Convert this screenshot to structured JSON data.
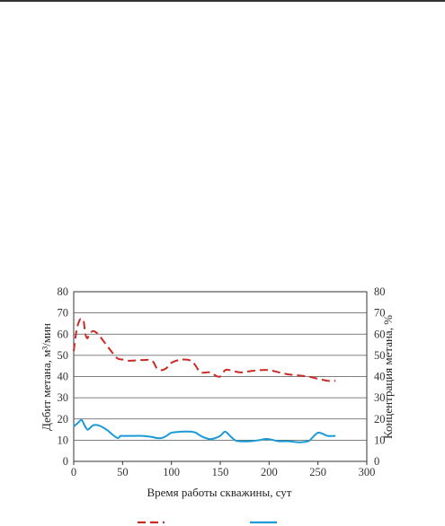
{
  "chart_data": {
    "type": "line",
    "xlabel": "Время работы скважины, сут",
    "ylabel_left": "Дебит метана, м³/мин",
    "ylabel_right": "Концентрация метана, %",
    "xlim": [
      0,
      300
    ],
    "ylim_left": [
      0,
      80
    ],
    "ylim_right": [
      0,
      80
    ],
    "xticks": [
      0,
      50,
      100,
      150,
      200,
      250,
      300
    ],
    "yticks_left": [
      0,
      10,
      20,
      30,
      40,
      50,
      60,
      70,
      80
    ],
    "yticks_right": [
      0,
      10,
      20,
      30,
      40,
      50,
      60,
      70,
      80
    ],
    "grid": "horizontal",
    "legend": "bottom",
    "series": [
      {
        "style": "dashed",
        "color": "#cc2a24",
        "axis": "right",
        "x": [
          0,
          3,
          6,
          8,
          10,
          12,
          14,
          16,
          20,
          25,
          30,
          35,
          40,
          45,
          50,
          55,
          60,
          70,
          80,
          85,
          90,
          95,
          100,
          110,
          120,
          125,
          130,
          140,
          145,
          150,
          155,
          160,
          170,
          180,
          190,
          200,
          210,
          220,
          230,
          240,
          250,
          260,
          268
        ],
        "y": [
          52,
          62,
          66.5,
          67,
          66.5,
          60,
          58,
          60,
          61.5,
          60,
          57,
          54,
          51,
          48.5,
          48,
          47.5,
          47.5,
          47.8,
          47.5,
          44,
          43,
          44,
          46.5,
          48,
          47.5,
          45,
          42,
          42,
          40.5,
          40,
          43,
          43,
          42,
          42.5,
          43,
          43,
          42,
          41,
          40.5,
          40,
          39,
          38,
          38
        ]
      },
      {
        "style": "solid",
        "color": "#1b9ad6",
        "axis": "left",
        "x": [
          0,
          4,
          8,
          11,
          14,
          16,
          20,
          25,
          30,
          35,
          40,
          45,
          48,
          50,
          55,
          60,
          70,
          80,
          85,
          90,
          95,
          100,
          110,
          120,
          125,
          130,
          135,
          140,
          145,
          150,
          155,
          160,
          165,
          170,
          180,
          190,
          195,
          200,
          210,
          220,
          230,
          240,
          245,
          250,
          255,
          260,
          268
        ],
        "y": [
          16.5,
          18,
          19.5,
          17,
          15,
          15.5,
          17,
          17,
          16,
          14.5,
          12.5,
          11,
          12,
          12,
          12,
          12,
          12,
          11.5,
          11,
          11,
          12,
          13.5,
          14,
          14,
          13.5,
          12,
          11,
          10.5,
          11,
          12,
          14,
          12,
          10,
          9.5,
          9.5,
          10,
          10.5,
          10.5,
          9.5,
          9.5,
          9,
          9.5,
          11.5,
          13.5,
          13,
          12,
          12
        ]
      }
    ]
  }
}
